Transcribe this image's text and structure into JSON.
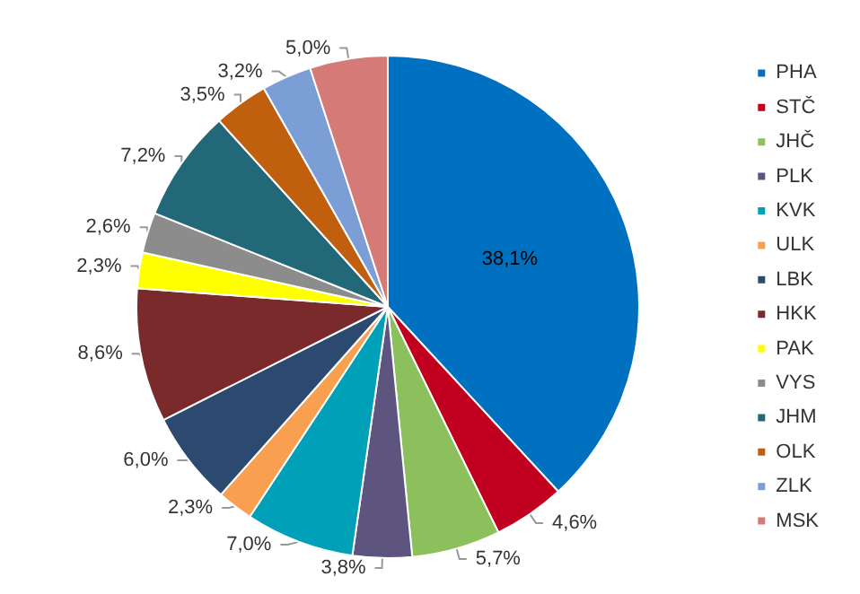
{
  "chart_data": {
    "type": "pie",
    "categories": [
      "PHA",
      "STČ",
      "JHČ",
      "PLK",
      "KVK",
      "ULK",
      "LBK",
      "HKK",
      "PAK",
      "VYS",
      "JHM",
      "OLK",
      "ZLK",
      "MSK"
    ],
    "values": [
      38.1,
      4.6,
      5.7,
      3.8,
      7.0,
      2.3,
      6.0,
      8.6,
      2.3,
      2.6,
      7.2,
      3.5,
      3.2,
      5.0
    ],
    "value_labels": [
      "38,1%",
      "4,6%",
      "5,7%",
      "3,8%",
      "7,0%",
      "2,3%",
      "6,0%",
      "8,6%",
      "2,3%",
      "2,6%",
      "7,2%",
      "3,5%",
      "3,2%",
      "5,0%"
    ],
    "colors": [
      "#0070c0",
      "#c0001e",
      "#8cc05c",
      "#5e5480",
      "#00a0b8",
      "#f8a050",
      "#2c4a70",
      "#7a2a2a",
      "#ffff00",
      "#8c8c8c",
      "#236878",
      "#c0600e",
      "#7c9ed6",
      "#d67a78"
    ],
    "legend": "right"
  }
}
